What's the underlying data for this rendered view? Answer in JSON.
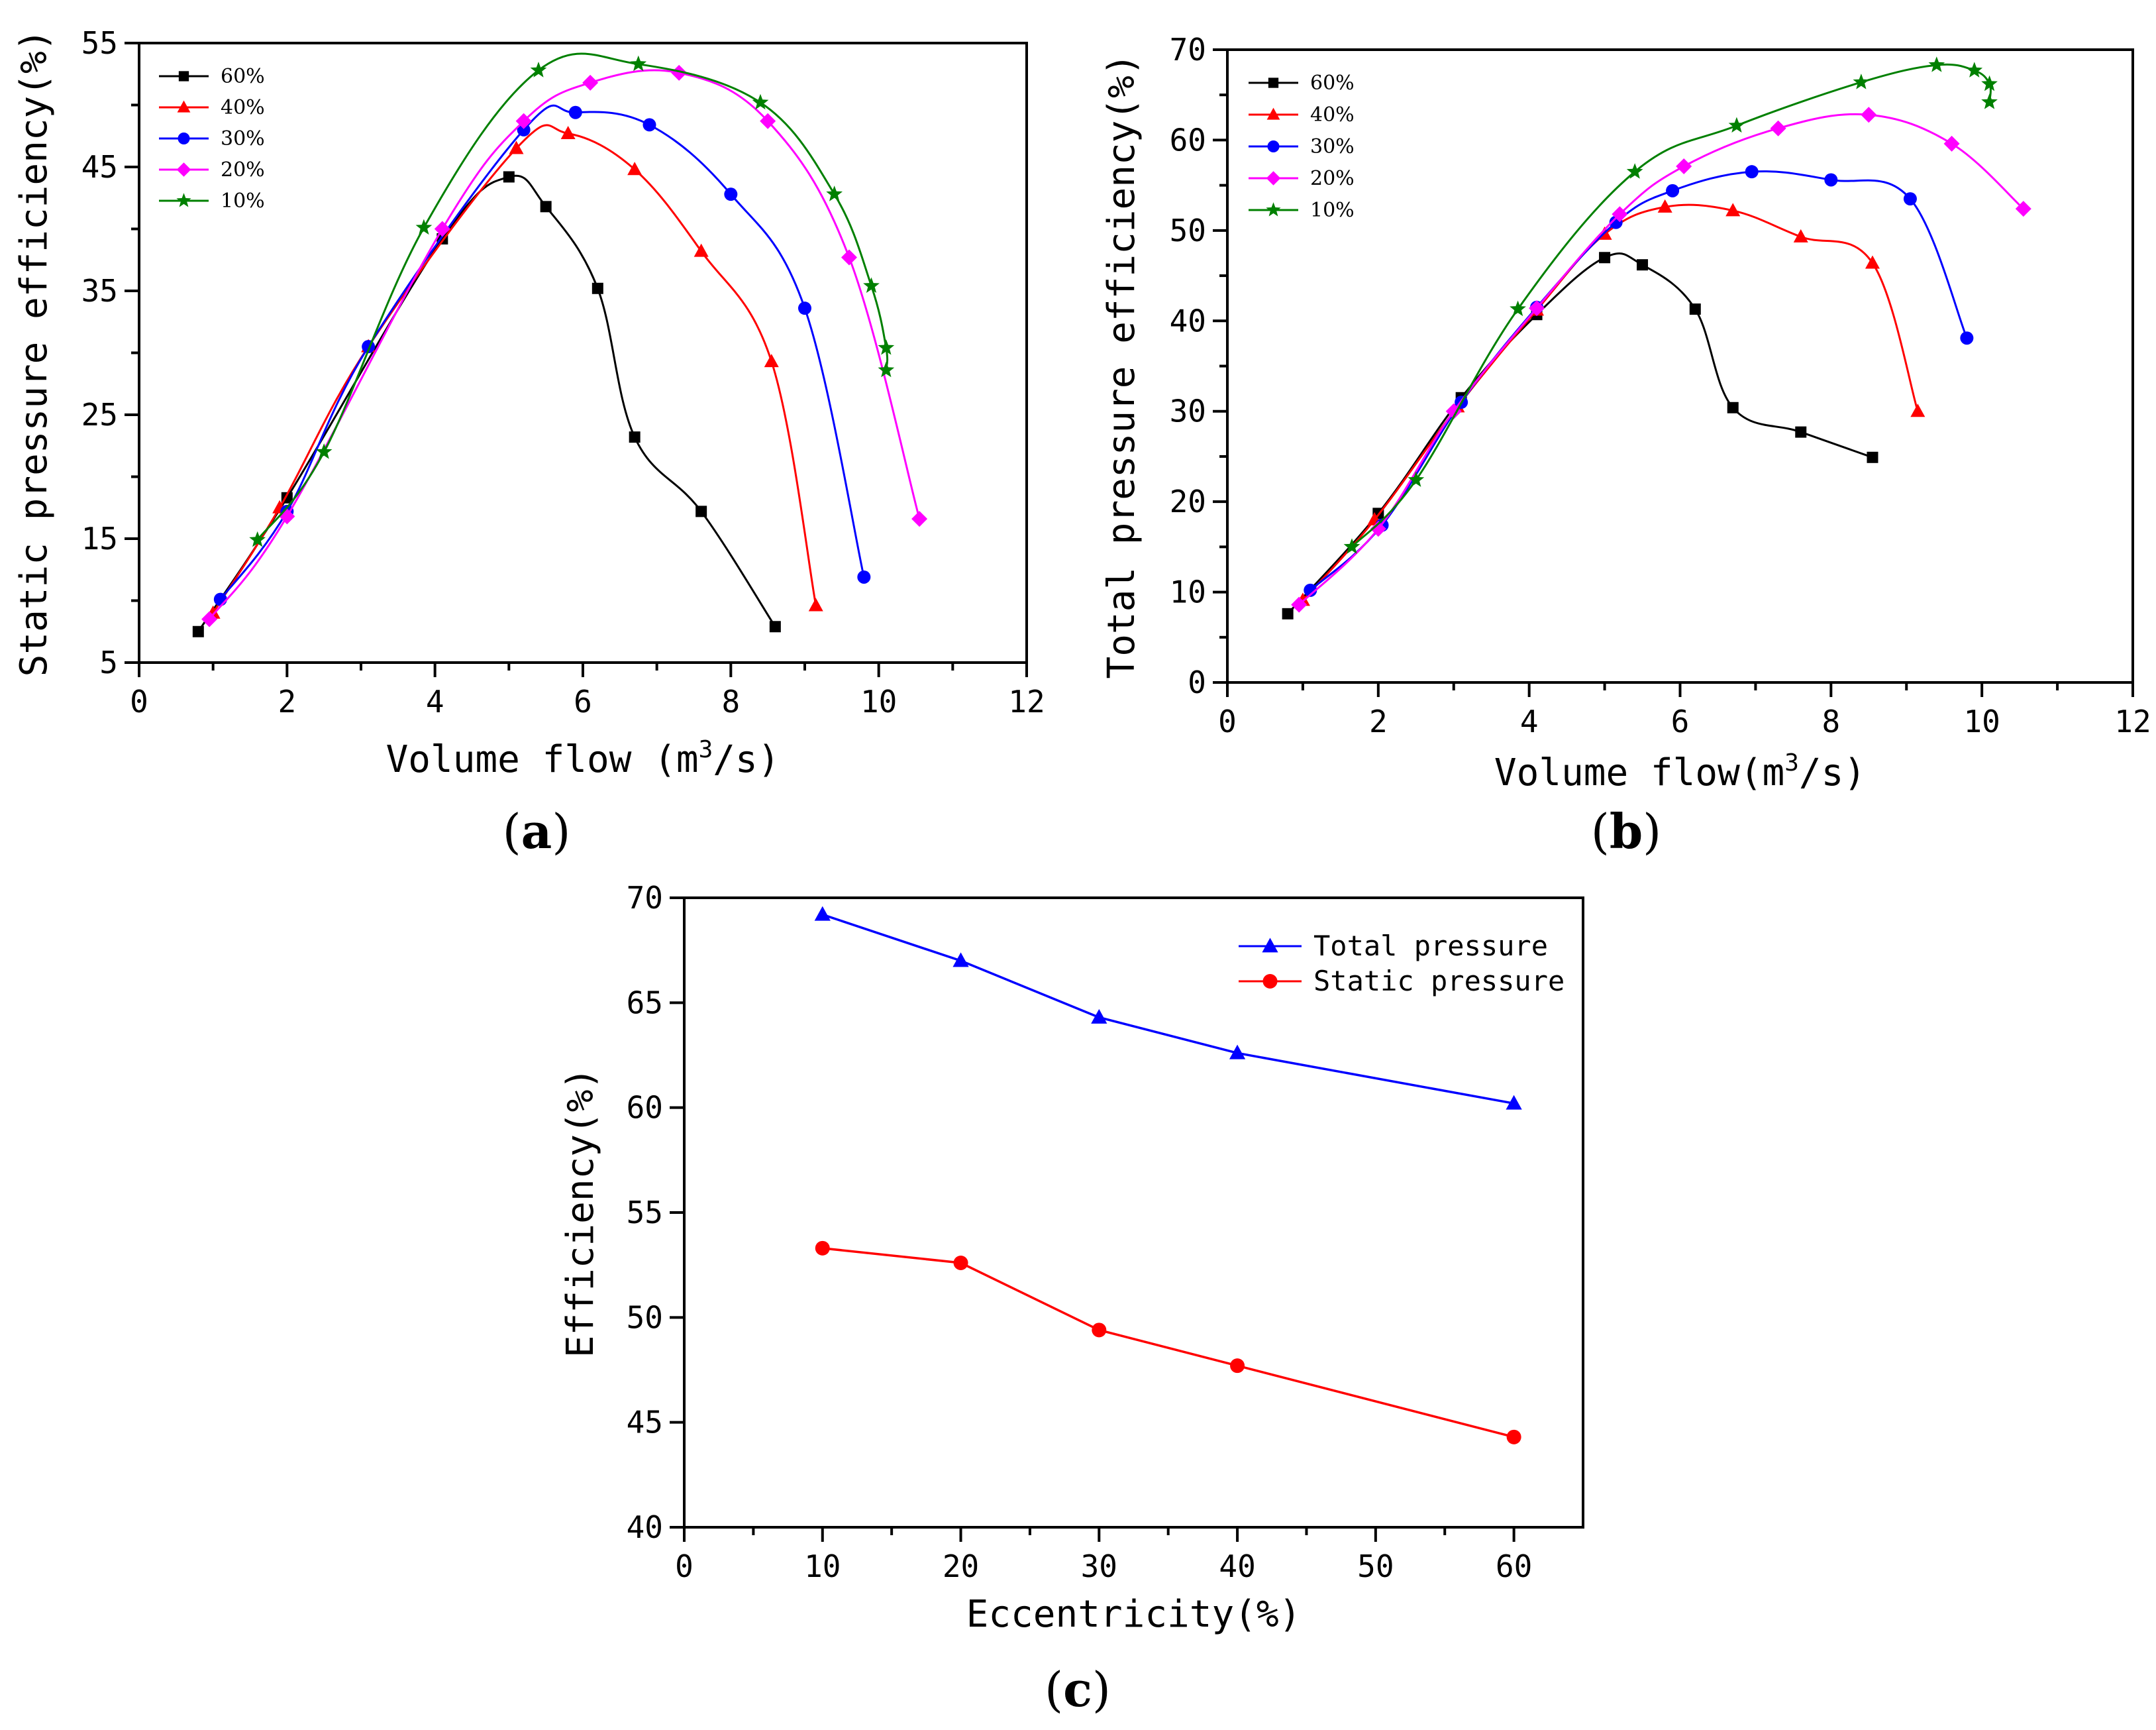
{
  "chart_data": [
    {
      "id": "a",
      "type": "line",
      "panel_label": "a",
      "title": "",
      "xlabel": "Volume flow (m³/s)",
      "ylabel": "Static pressure efficiency(%)",
      "xlim": [
        0,
        12
      ],
      "ylim": [
        5,
        55
      ],
      "xticks": [
        0,
        2,
        4,
        6,
        8,
        10,
        12
      ],
      "yticks": [
        5,
        15,
        25,
        35,
        45,
        55
      ],
      "legend_position": "top-left",
      "series": [
        {
          "name": "60%",
          "color": "#000000",
          "marker": "square",
          "x": [
            0.8,
            2.0,
            4.1,
            5.0,
            5.5,
            6.2,
            6.7,
            7.6,
            8.6
          ],
          "y": [
            7.5,
            18.3,
            39.2,
            44.2,
            41.8,
            35.2,
            23.2,
            17.2,
            7.9
          ]
        },
        {
          "name": "40%",
          "color": "#ff0000",
          "marker": "triangle",
          "x": [
            1.0,
            1.9,
            3.1,
            5.1,
            5.8,
            6.7,
            7.6,
            8.55,
            9.15
          ],
          "y": [
            9.0,
            17.5,
            30.5,
            46.5,
            47.7,
            44.8,
            38.2,
            29.3,
            9.6
          ]
        },
        {
          "name": "30%",
          "color": "#0000ff",
          "marker": "circle",
          "x": [
            1.1,
            2.0,
            3.1,
            5.2,
            5.9,
            6.9,
            8.0,
            9.0,
            9.8
          ],
          "y": [
            10.1,
            17.2,
            30.5,
            48.0,
            49.4,
            48.4,
            42.8,
            33.6,
            11.9
          ]
        },
        {
          "name": "20%",
          "color": "#ff00ff",
          "marker": "diamond",
          "x": [
            0.95,
            2.0,
            4.1,
            5.2,
            6.1,
            7.3,
            8.5,
            9.6,
            10.55
          ],
          "y": [
            8.5,
            16.8,
            40.0,
            48.7,
            51.8,
            52.6,
            48.7,
            37.7,
            16.6
          ]
        },
        {
          "name": "10%",
          "color": "#008000",
          "marker": "star",
          "x": [
            1.6,
            2.5,
            3.85,
            5.4,
            6.75,
            8.4,
            9.4,
            9.9,
            10.1,
            10.1
          ],
          "y": [
            14.9,
            22.0,
            40.1,
            52.8,
            53.3,
            50.2,
            42.8,
            35.4,
            30.4,
            28.6
          ]
        }
      ]
    },
    {
      "id": "b",
      "type": "line",
      "panel_label": "b",
      "title": "",
      "xlabel": "Volume flow(m³/s)",
      "ylabel": "Total pressure efficiency(%)",
      "xlim": [
        0,
        12
      ],
      "ylim": [
        0,
        70
      ],
      "xticks": [
        0,
        2,
        4,
        6,
        8,
        10,
        12
      ],
      "yticks": [
        0,
        10,
        20,
        30,
        40,
        50,
        60,
        70
      ],
      "legend_position": "top-left",
      "series": [
        {
          "name": "60%",
          "color": "#000000",
          "marker": "square",
          "x": [
            0.8,
            2.0,
            3.1,
            4.1,
            5.0,
            5.5,
            6.2,
            6.7,
            7.6,
            8.55
          ],
          "y": [
            7.6,
            18.7,
            31.5,
            40.7,
            47.0,
            46.2,
            41.3,
            30.4,
            27.7,
            24.9
          ]
        },
        {
          "name": "40%",
          "color": "#ff0000",
          "marker": "triangle",
          "x": [
            1.0,
            1.95,
            3.05,
            4.1,
            5.0,
            5.8,
            6.7,
            7.6,
            8.55,
            9.15
          ],
          "y": [
            9.1,
            18.0,
            30.5,
            41.2,
            49.6,
            52.6,
            52.2,
            49.3,
            46.4,
            30.0
          ]
        },
        {
          "name": "30%",
          "color": "#0000ff",
          "marker": "circle",
          "x": [
            1.1,
            2.05,
            3.1,
            4.1,
            5.15,
            5.9,
            6.95,
            8.0,
            9.05,
            9.8
          ],
          "y": [
            10.2,
            17.4,
            31.0,
            41.5,
            50.9,
            54.4,
            56.5,
            55.6,
            53.5,
            38.1
          ]
        },
        {
          "name": "20%",
          "color": "#ff00ff",
          "marker": "diamond",
          "x": [
            0.95,
            2.0,
            3.0,
            4.1,
            5.2,
            6.05,
            7.3,
            8.5,
            9.6,
            10.55
          ],
          "y": [
            8.6,
            17.0,
            30.0,
            41.4,
            51.8,
            57.1,
            61.3,
            62.8,
            59.6,
            52.4
          ]
        },
        {
          "name": "10%",
          "color": "#008000",
          "marker": "star",
          "x": [
            1.65,
            2.5,
            3.85,
            5.4,
            6.75,
            8.4,
            9.4,
            9.9,
            10.1,
            10.1
          ],
          "y": [
            15.0,
            22.4,
            41.3,
            56.5,
            61.6,
            66.4,
            68.3,
            67.7,
            66.2,
            64.2
          ]
        }
      ]
    },
    {
      "id": "c",
      "type": "line",
      "panel_label": "c",
      "title": "",
      "xlabel": "Eccentricity(%)",
      "ylabel": "Efficiency(%)",
      "xlim": [
        0,
        65
      ],
      "ylim": [
        40,
        70
      ],
      "xticks": [
        0,
        10,
        20,
        30,
        40,
        50,
        60
      ],
      "yticks": [
        40,
        45,
        50,
        55,
        60,
        65,
        70
      ],
      "legend_position": "top-right",
      "series": [
        {
          "name": "Total pressure",
          "color": "#0000ff",
          "marker": "triangle",
          "x": [
            10,
            20,
            30,
            40,
            60
          ],
          "y": [
            69.2,
            67.0,
            64.3,
            62.6,
            60.2
          ]
        },
        {
          "name": "Static pressure",
          "color": "#ff0000",
          "marker": "circle",
          "x": [
            10,
            20,
            30,
            40,
            60
          ],
          "y": [
            53.3,
            52.6,
            49.4,
            47.7,
            44.3
          ]
        }
      ]
    }
  ]
}
